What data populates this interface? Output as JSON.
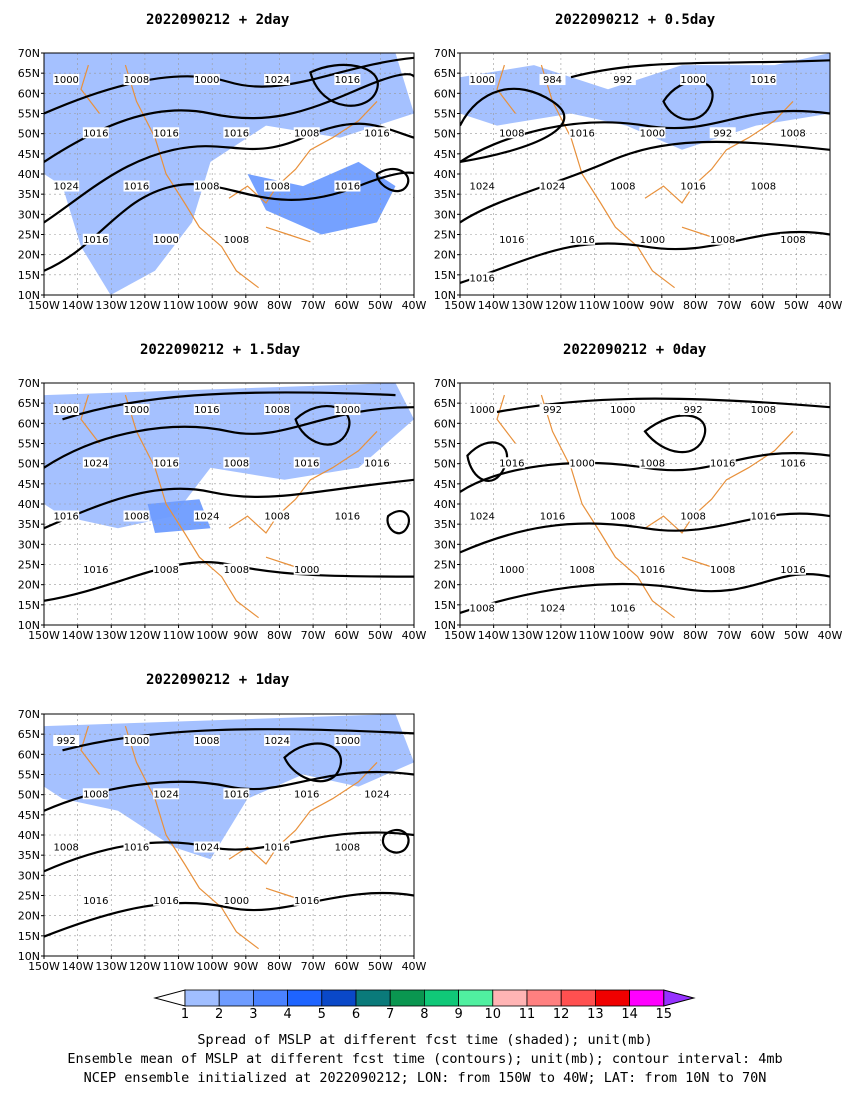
{
  "panels": [
    {
      "title": "2022090212 + 2day",
      "contour_labels": [
        "1000",
        "1008",
        "1000",
        "1024",
        "1016",
        "1016",
        "1016",
        "1016",
        "1008",
        "1016",
        "1024",
        "1016",
        "1008",
        "1008",
        "1016",
        "1016",
        "1000",
        "1008"
      ]
    },
    {
      "title": "2022090212 + 0.5day",
      "contour_labels": [
        "1000",
        "984",
        "992",
        "1000",
        "1016",
        "1008",
        "1016",
        "1000",
        "992",
        "1008",
        "1024",
        "1024",
        "1008",
        "1016",
        "1008",
        "1016",
        "1016",
        "1000",
        "1008",
        "1008",
        "1016"
      ]
    },
    {
      "title": "2022090212 + 1.5day",
      "contour_labels": [
        "1000",
        "1000",
        "1016",
        "1008",
        "1000",
        "1024",
        "1016",
        "1008",
        "1016",
        "1016",
        "1016",
        "1008",
        "1024",
        "1008",
        "1016",
        "1016",
        "1008",
        "1008",
        "1000"
      ]
    },
    {
      "title": "2022090212 + 0day",
      "contour_labels": [
        "1000",
        "992",
        "1000",
        "992",
        "1008",
        "1016",
        "1000",
        "1008",
        "1016",
        "1016",
        "1024",
        "1016",
        "1008",
        "1008",
        "1016",
        "1000",
        "1008",
        "1016",
        "1008",
        "1016",
        "1008",
        "1024",
        "1016"
      ]
    },
    {
      "title": "2022090212 + 1day",
      "contour_labels": [
        "992",
        "1000",
        "1008",
        "1024",
        "1000",
        "1008",
        "1024",
        "1016",
        "1016",
        "1024",
        "1008",
        "1016",
        "1024",
        "1016",
        "1008",
        "1016",
        "1016",
        "1000",
        "1016"
      ]
    }
  ],
  "axes": {
    "lat_labels": [
      "70N",
      "65N",
      "60N",
      "55N",
      "50N",
      "45N",
      "40N",
      "35N",
      "30N",
      "25N",
      "20N",
      "15N",
      "10N"
    ],
    "lon_labels": [
      "150W",
      "140W",
      "130W",
      "120W",
      "110W",
      "100W",
      "90W",
      "80W",
      "70W",
      "60W",
      "50W",
      "40W"
    ]
  },
  "legend": {
    "labels": [
      "1",
      "2",
      "3",
      "4",
      "5",
      "6",
      "7",
      "8",
      "9",
      "10",
      "11",
      "12",
      "13",
      "14",
      "15"
    ],
    "colors": [
      "#a0beff",
      "#6e9cff",
      "#4a82ff",
      "#1e64ff",
      "#0a48c8",
      "#0a7a7a",
      "#0a9650",
      "#10c878",
      "#50f0a0",
      "#ffb4b4",
      "#ff8080",
      "#ff5050",
      "#f00000",
      "#ff00ff",
      "#9632ff"
    ]
  },
  "map_colors": {
    "coast": "#e8913c",
    "shade": "#a0beff",
    "shade_dark": "#6e9cff",
    "contour": "#000000"
  },
  "footer": {
    "line1": "Spread of MSLP at different fcst time (shaded); unit(mb)",
    "line2": "Ensemble mean of MSLP at different fcst time (contours); unit(mb); contour interval: 4mb",
    "line3": "NCEP ensemble initialized at 2022090212; LON: from 150W to 40W; LAT: from 10N to 70N"
  }
}
